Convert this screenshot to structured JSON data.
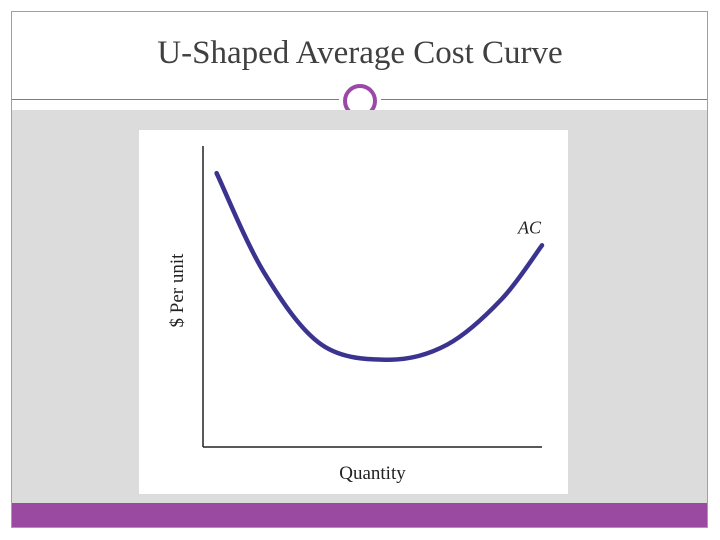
{
  "slide": {
    "title": "U-Shaped Average Cost Curve",
    "accent_color": "#9b4aa2",
    "background_color": "#dcdcdc"
  },
  "chart_data": {
    "type": "line",
    "title": "",
    "xlabel": "Quantity",
    "ylabel": "$ Per unit",
    "series": [
      {
        "name": "AC",
        "color": "#3a3490",
        "x": [
          0.04,
          0.18,
          0.35,
          0.55,
          0.72,
          0.88,
          1.0
        ],
        "y": [
          0.91,
          0.58,
          0.34,
          0.29,
          0.34,
          0.49,
          0.67
        ]
      }
    ],
    "xlim": [
      0,
      1.0
    ],
    "ylim": [
      0,
      1.0
    ],
    "grid": false,
    "ticks": false
  }
}
